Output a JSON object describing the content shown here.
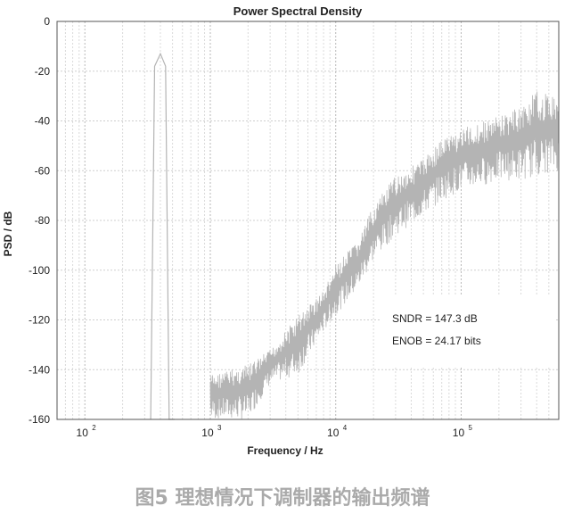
{
  "chart_data": {
    "type": "line",
    "title": "Power Spectral Density",
    "xlabel": "Frequency / Hz",
    "ylabel": "PSD / dB",
    "xscale": "log",
    "xlim": [
      60,
      600000
    ],
    "ylim": [
      -160,
      0
    ],
    "yticks": [
      0,
      -20,
      -40,
      -60,
      -80,
      -100,
      -120,
      -140,
      -160
    ],
    "xticks": [
      {
        "value": 100,
        "base": "10",
        "exp": "2"
      },
      {
        "value": 1000,
        "base": "10",
        "exp": "3"
      },
      {
        "value": 10000,
        "base": "10",
        "exp": "4"
      },
      {
        "value": 100000,
        "base": "10",
        "exp": "5"
      }
    ],
    "grid": true,
    "line_color": "#b4b4b4",
    "series": [
      {
        "x": [
          335,
          360,
          400,
          440,
          470,
          520
        ],
        "y": [
          -160,
          -18,
          -13,
          -18,
          -160,
          -160
        ]
      },
      {
        "envelope": true,
        "x": [
          1000,
          2000,
          3000,
          5000,
          8000,
          10000,
          15000,
          20000,
          30000,
          50000,
          70000,
          100000,
          150000,
          200000,
          300000,
          400000,
          600000
        ],
        "upper": [
          -142,
          -138,
          -132,
          -118,
          -108,
          -98,
          -88,
          -74,
          -62,
          -55,
          -47,
          -43,
          -40,
          -38,
          -34,
          -28,
          -30
        ],
        "lower": [
          -160,
          -160,
          -146,
          -142,
          -125,
          -118,
          -108,
          -96,
          -86,
          -78,
          -72,
          -68,
          -66,
          -64,
          -64,
          -62,
          -60
        ]
      }
    ],
    "annotations": [
      "SNDR = 147.3 dB",
      "ENOB = 24.17 bits"
    ]
  },
  "caption": "图5 理想情况下调制器的输出频谱"
}
